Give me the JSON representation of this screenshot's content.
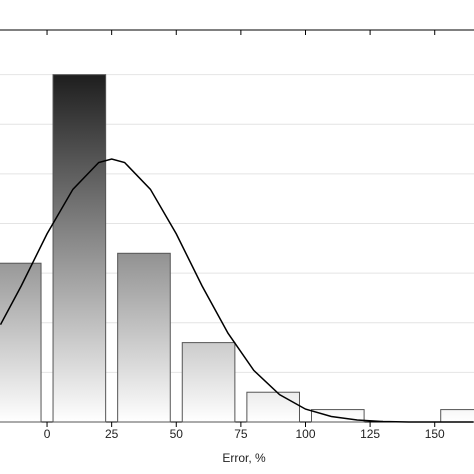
{
  "chart_data": {
    "type": "histogram",
    "x_label": "Error, %",
    "bins": [
      -25,
      0,
      25,
      50,
      75,
      100,
      125,
      150,
      175
    ],
    "values": [
      3.2,
      7,
      3.4,
      1.6,
      0.6,
      0.25,
      0,
      0.25
    ],
    "gradient": [
      "#1e1e1e",
      "#ffffff"
    ],
    "curve": {
      "x": [
        -18,
        -10,
        0,
        10,
        20,
        25,
        30,
        40,
        50,
        60,
        70,
        80,
        90,
        100,
        110,
        120,
        130,
        140,
        150,
        165
      ],
      "values": [
        1.96,
        2.74,
        3.79,
        4.69,
        5.23,
        5.3,
        5.23,
        4.69,
        3.79,
        2.74,
        1.79,
        1.04,
        0.55,
        0.26,
        0.11,
        0.04,
        0.01,
        0,
        0,
        0
      ],
      "color": "#000000"
    },
    "xlim": [
      -18.2,
      165.2
    ],
    "xticks": [
      0,
      25,
      50,
      75,
      100,
      125,
      150
    ],
    "ylim": [
      0,
      7.9
    ],
    "ygrid": [
      1,
      2,
      3,
      4,
      5,
      6,
      7
    ]
  }
}
